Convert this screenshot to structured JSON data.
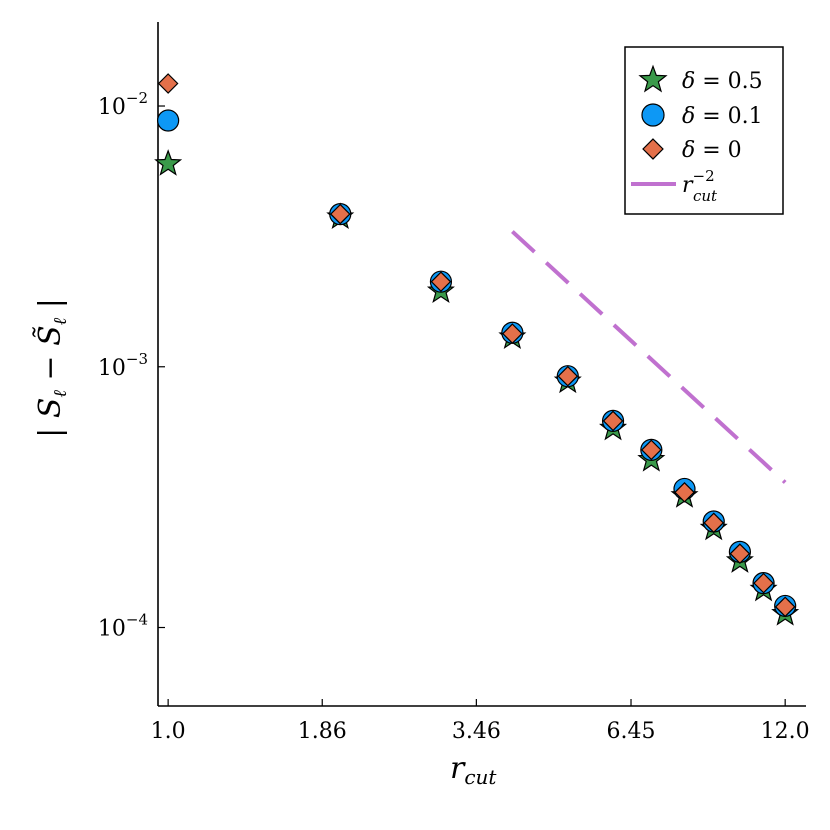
{
  "chart_data": {
    "type": "scatter",
    "title": "",
    "xlabel": "r_cut",
    "ylabel": "| S_ℓ − S̃_ℓ |",
    "x_scale": "log",
    "y_scale": "log",
    "xlim": [
      0.96,
      13.05
    ],
    "ylim": [
      5e-05,
      0.021
    ],
    "x_ticks": [
      1.0,
      1.86,
      3.46,
      6.45,
      12.0
    ],
    "x_tick_labels": [
      "1.0",
      "1.86",
      "3.46",
      "6.45",
      "12.0"
    ],
    "y_ticks": [
      0.0001,
      0.001,
      0.01
    ],
    "y_tick_labels": [
      {
        "base": "10",
        "exp": "−4"
      },
      {
        "base": "10",
        "exp": "−3"
      },
      {
        "base": "10",
        "exp": "−2"
      }
    ],
    "grid": false,
    "legend_position": "top-right",
    "series": [
      {
        "name": "δ = 0.5",
        "marker": "star",
        "color": "#3a9a4a",
        "x": [
          1.0,
          2.0,
          3.0,
          4.0,
          5.0,
          6.0,
          7.0,
          8.0,
          9.0,
          10.0,
          11.0,
          12.0
        ],
        "y": [
          0.006,
          0.00375,
          0.00195,
          0.0013,
          0.00088,
          0.00058,
          0.00044,
          0.00032,
          0.00024,
          0.00018,
          0.00014,
          0.000113
        ]
      },
      {
        "name": "δ = 0.1",
        "marker": "circle",
        "color": "#0d98f5",
        "x": [
          1.0,
          2.0,
          3.0,
          4.0,
          5.0,
          6.0,
          7.0,
          8.0,
          9.0,
          10.0,
          11.0,
          12.0
        ],
        "y": [
          0.0088,
          0.00385,
          0.00212,
          0.00135,
          0.00092,
          0.00062,
          0.00048,
          0.00034,
          0.000255,
          0.000195,
          0.000148,
          0.000121
        ]
      },
      {
        "name": "δ = 0",
        "marker": "diamond",
        "color": "#e4704a",
        "x": [
          1.0,
          2.0,
          3.0,
          4.0,
          5.0,
          6.0,
          7.0,
          8.0,
          9.0,
          10.0,
          11.0,
          12.0
        ],
        "y": [
          0.0122,
          0.00385,
          0.00212,
          0.00134,
          0.00092,
          0.00062,
          0.00048,
          0.00033,
          0.000252,
          0.000192,
          0.000148,
          0.00012
        ]
      },
      {
        "name": "r_cut^-2",
        "marker": "dashed-line",
        "color": "#c071cf",
        "x": [
          4.0,
          12.0
        ],
        "y": [
          0.0033,
          0.00036
        ]
      }
    ],
    "legend": [
      {
        "symbol": "δ",
        "value": " = 0.5"
      },
      {
        "symbol": "δ",
        "value": " = 0.1"
      },
      {
        "symbol": "δ",
        "value": " = 0"
      },
      {
        "symbol": "r",
        "sub": "cut",
        "sup": "−2"
      }
    ],
    "axis_text": {
      "x": {
        "main": "r",
        "sub": "cut"
      },
      "y": {
        "left_bar": "|",
        "s1": "S",
        "s1_sub": "ℓ",
        "minus": "−",
        "s2": "S̃",
        "s2_sub": "ℓ",
        "right_bar": "|"
      }
    }
  }
}
